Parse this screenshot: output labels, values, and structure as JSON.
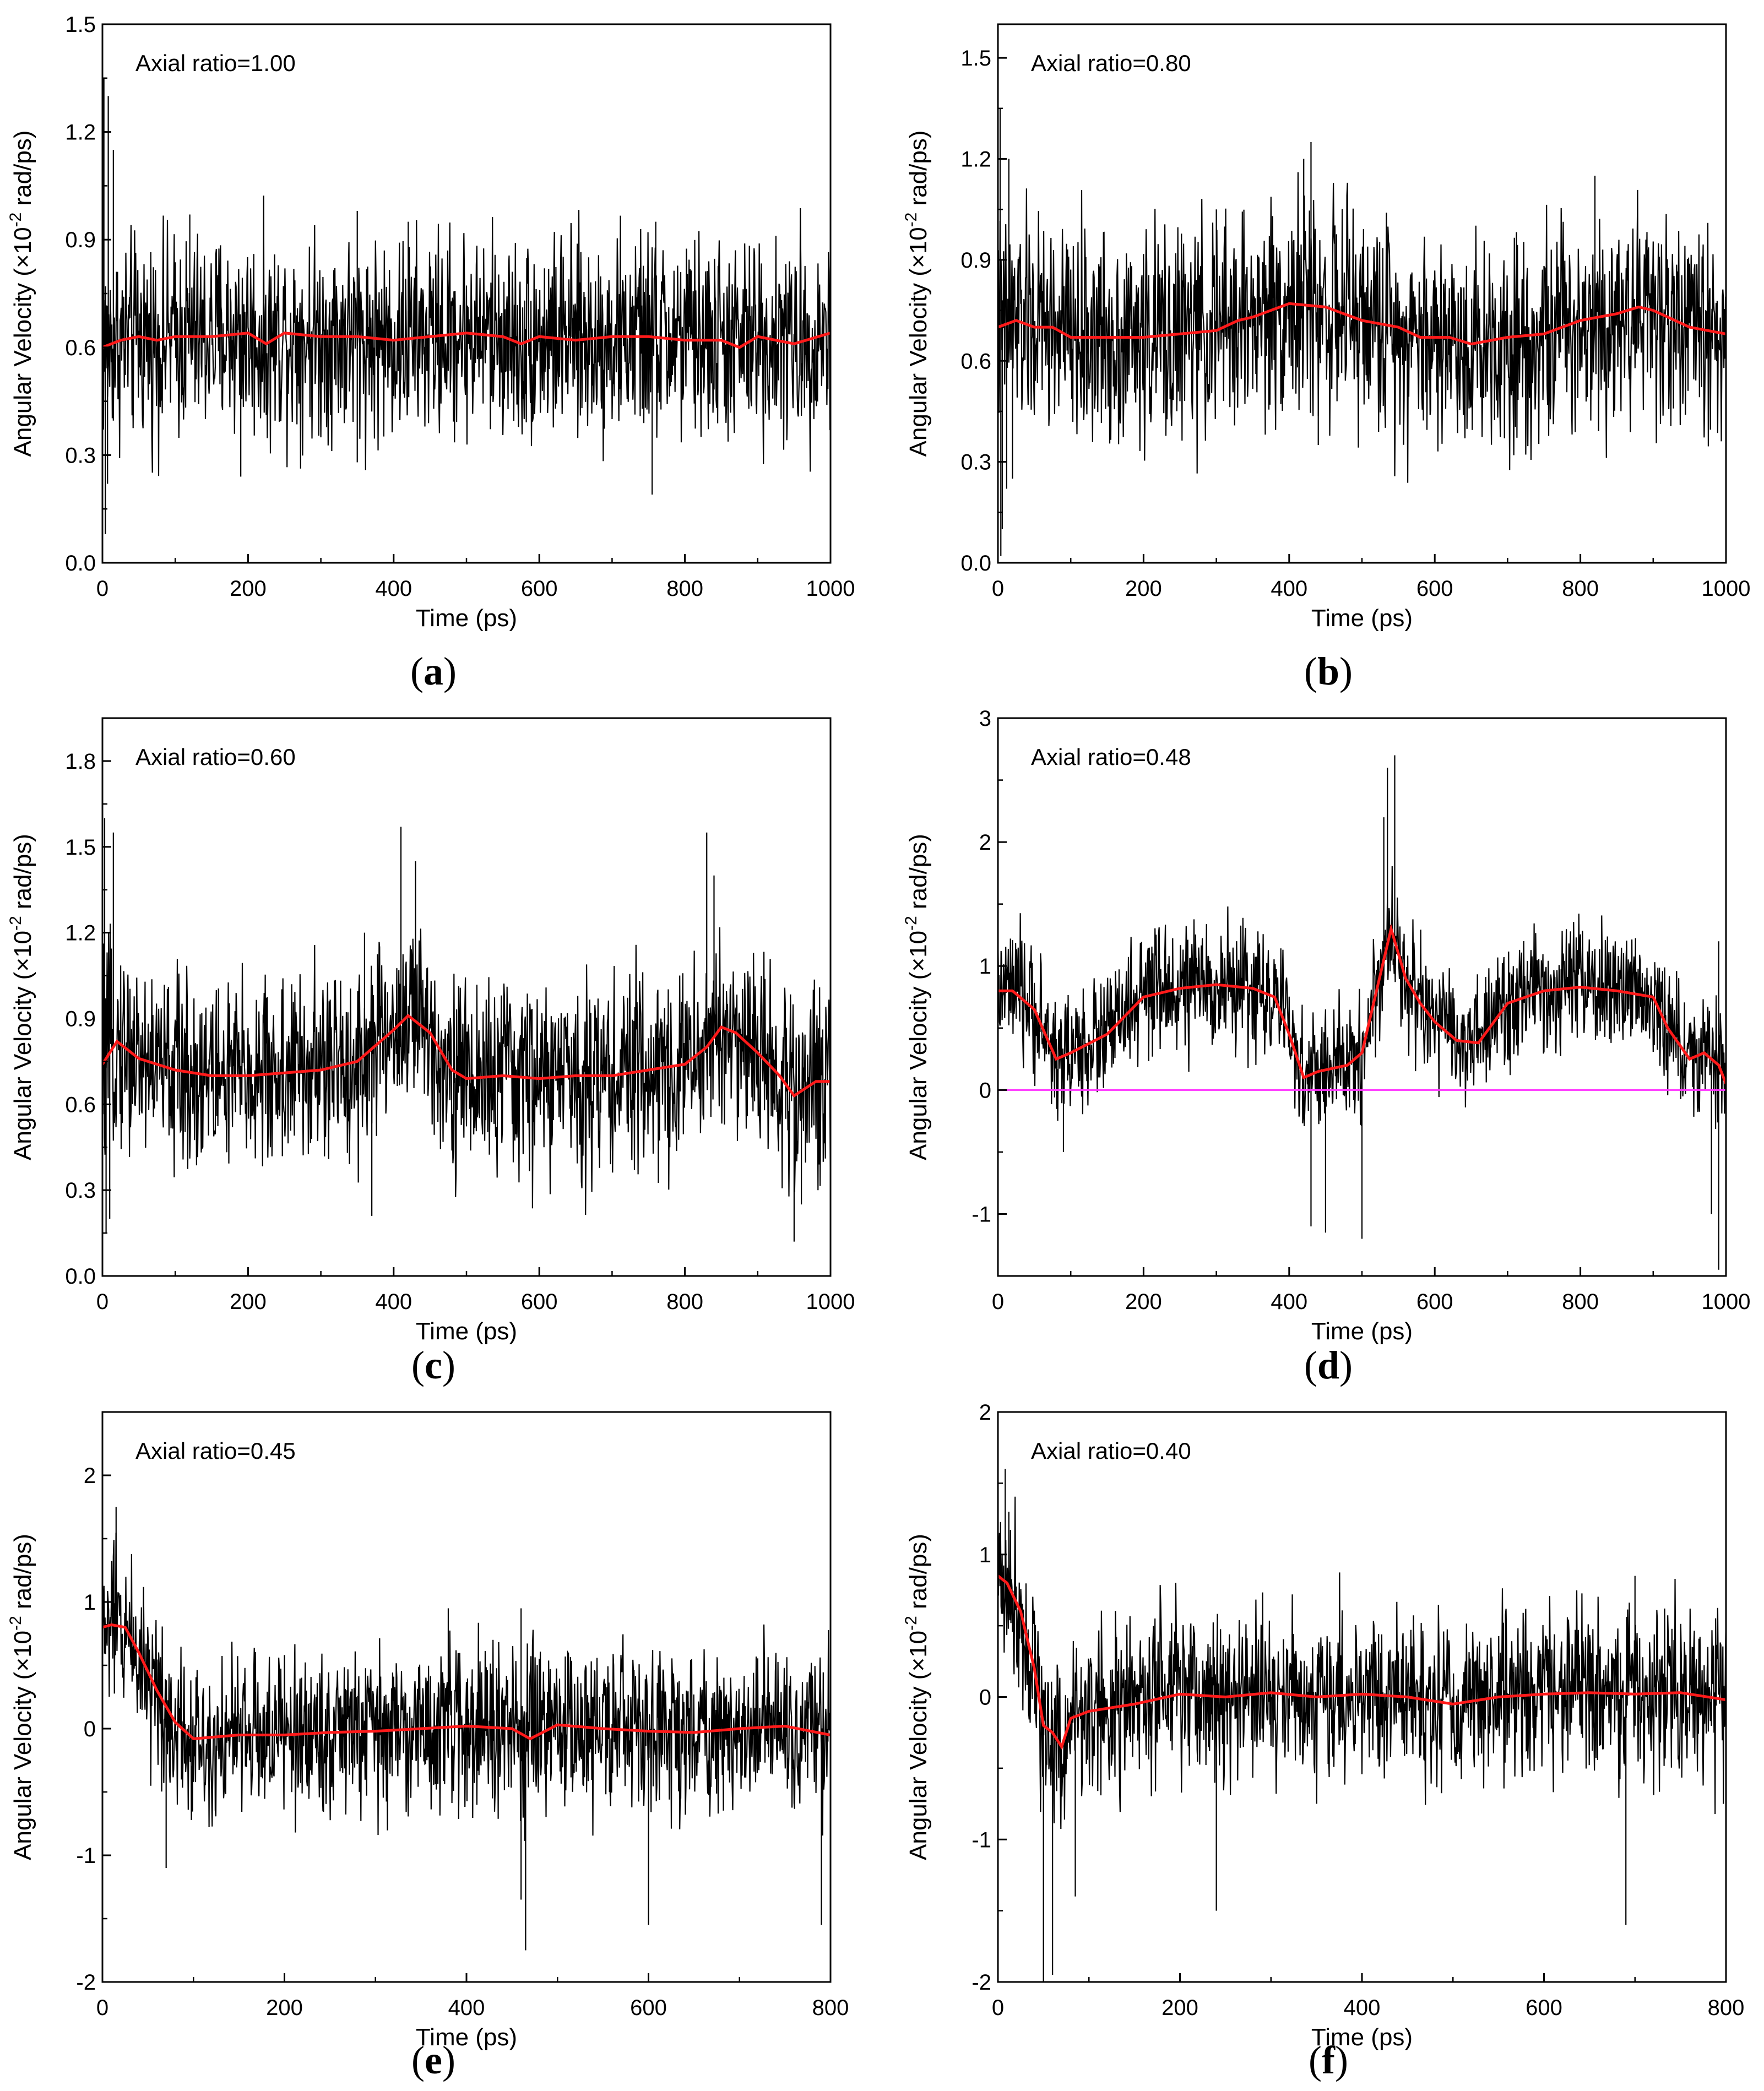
{
  "colors": {
    "raw": "#000000",
    "smoothed": "#ff1a1a",
    "zero_line": "#ff33ff",
    "axis": "#000000"
  },
  "chart_data": [
    {
      "id": "a",
      "type": "line",
      "caption": "a",
      "annotation": "Axial ratio=1.00",
      "xlabel": "Time (ps)",
      "ylabel_prefix": "Angular Velocity (",
      "ylabel_mult": "×10",
      "ylabel_exp": "-2",
      "ylabel_suffix": " rad/ps)",
      "xlim": [
        0,
        1000
      ],
      "ylim": [
        0,
        1.5
      ],
      "xticks": [
        "0",
        "200",
        "400",
        "600",
        "800",
        "1000"
      ],
      "xtick_values": [
        0,
        200,
        400,
        600,
        800,
        1000
      ],
      "yticks": [
        "0.0",
        "0.3",
        "0.6",
        "0.9",
        "1.2",
        "1.5"
      ],
      "ytick_values": [
        0,
        0.3,
        0.6,
        0.9,
        1.2,
        1.5
      ],
      "series": [
        {
          "name": "smoothed angular velocity",
          "x": [
            0,
            25,
            50,
            75,
            100,
            150,
            200,
            225,
            250,
            300,
            350,
            400,
            450,
            500,
            550,
            575,
            600,
            650,
            700,
            750,
            800,
            850,
            875,
            900,
            950,
            1000
          ],
          "values": [
            0.6,
            0.62,
            0.63,
            0.62,
            0.63,
            0.63,
            0.64,
            0.61,
            0.64,
            0.63,
            0.63,
            0.62,
            0.63,
            0.64,
            0.63,
            0.61,
            0.63,
            0.62,
            0.63,
            0.63,
            0.62,
            0.62,
            0.6,
            0.63,
            0.61,
            0.64
          ]
        }
      ],
      "raw": {
        "baseline": 0.63,
        "noise": 0.14,
        "spikes_up": [
          [
            2,
            1.35
          ],
          [
            8,
            1.3
          ],
          [
            15,
            1.15
          ],
          [
            120,
            0.97
          ],
          [
            350,
            0.98
          ],
          [
            420,
            0.95
          ],
          [
            760,
            0.95
          ]
        ],
        "spikes_down": [
          [
            4,
            0.08
          ],
          [
            7,
            0.22
          ],
          [
            190,
            0.24
          ],
          [
            755,
            0.19
          ],
          [
            350,
            0.28
          ]
        ]
      }
    },
    {
      "id": "b",
      "type": "line",
      "caption": "b",
      "annotation": "Axial ratio=0.80",
      "xlabel": "Time (ps)",
      "ylabel_prefix": "Angular Velocity (",
      "ylabel_mult": "×10",
      "ylabel_exp": "-2",
      "ylabel_suffix": " rad/ps)",
      "xlim": [
        0,
        1000
      ],
      "ylim": [
        0,
        1.6
      ],
      "xticks": [
        "0",
        "200",
        "400",
        "600",
        "800",
        "1000"
      ],
      "xtick_values": [
        0,
        200,
        400,
        600,
        800,
        1000
      ],
      "yticks": [
        "0.0",
        "0.3",
        "0.6",
        "0.9",
        "1.2",
        "1.5"
      ],
      "ytick_values": [
        0,
        0.3,
        0.6,
        0.9,
        1.2,
        1.5
      ],
      "series": [
        {
          "name": "smoothed angular velocity",
          "x": [
            0,
            25,
            50,
            75,
            100,
            150,
            200,
            250,
            300,
            330,
            350,
            400,
            450,
            500,
            550,
            580,
            620,
            650,
            700,
            750,
            800,
            850,
            880,
            900,
            950,
            1000
          ],
          "values": [
            0.7,
            0.72,
            0.7,
            0.7,
            0.67,
            0.67,
            0.67,
            0.68,
            0.69,
            0.72,
            0.73,
            0.77,
            0.76,
            0.72,
            0.7,
            0.67,
            0.67,
            0.65,
            0.67,
            0.68,
            0.72,
            0.74,
            0.76,
            0.75,
            0.7,
            0.68
          ]
        }
      ],
      "raw": {
        "baseline": 0.7,
        "noise": 0.16,
        "spikes_up": [
          [
            3,
            1.35
          ],
          [
            15,
            1.2
          ],
          [
            420,
            1.2
          ],
          [
            430,
            1.25
          ],
          [
            820,
            1.15
          ],
          [
            300,
            1.05
          ]
        ],
        "spikes_down": [
          [
            4,
            0.02
          ],
          [
            6,
            0.1
          ],
          [
            12,
            0.22
          ],
          [
            20,
            0.25
          ],
          [
            440,
            0.35
          ]
        ]
      }
    },
    {
      "id": "c",
      "type": "line",
      "caption": "c",
      "annotation": "Axial ratio=0.60",
      "xlabel": "Time (ps)",
      "ylabel_prefix": "Angular Velocity (",
      "ylabel_mult": "×10",
      "ylabel_exp": "-2",
      "ylabel_suffix": " rad/ps)",
      "xlim": [
        0,
        1000
      ],
      "ylim": [
        0,
        1.95
      ],
      "xticks": [
        "0",
        "200",
        "400",
        "600",
        "800",
        "1000"
      ],
      "xtick_values": [
        0,
        200,
        400,
        600,
        800,
        1000
      ],
      "yticks": [
        "0.0",
        "0.3",
        "0.6",
        "0.9",
        "1.2",
        "1.5",
        "1.8"
      ],
      "ytick_values": [
        0,
        0.3,
        0.6,
        0.9,
        1.2,
        1.5,
        1.8
      ],
      "series": [
        {
          "name": "smoothed angular velocity",
          "x": [
            0,
            20,
            50,
            100,
            150,
            200,
            250,
            300,
            350,
            400,
            420,
            450,
            480,
            500,
            550,
            600,
            650,
            700,
            750,
            800,
            830,
            850,
            870,
            900,
            930,
            950,
            980,
            1000
          ],
          "values": [
            0.74,
            0.82,
            0.76,
            0.72,
            0.7,
            0.7,
            0.71,
            0.72,
            0.75,
            0.86,
            0.91,
            0.85,
            0.72,
            0.69,
            0.7,
            0.69,
            0.7,
            0.7,
            0.72,
            0.74,
            0.8,
            0.87,
            0.85,
            0.78,
            0.7,
            0.63,
            0.68,
            0.68
          ]
        }
      ],
      "raw": {
        "baseline": 0.72,
        "noise": 0.17,
        "spikes_up": [
          [
            3,
            1.6
          ],
          [
            15,
            1.55
          ],
          [
            410,
            1.57
          ],
          [
            430,
            1.45
          ],
          [
            830,
            1.55
          ],
          [
            840,
            1.4
          ],
          [
            360,
            1.2
          ]
        ],
        "spikes_down": [
          [
            5,
            0.15
          ],
          [
            10,
            0.2
          ],
          [
            370,
            0.21
          ],
          [
            950,
            0.12
          ],
          [
            960,
            0.25
          ]
        ]
      }
    },
    {
      "id": "d",
      "type": "line",
      "caption": "d",
      "annotation": "Axial ratio=0.48",
      "xlabel": "Time (ps)",
      "ylabel_prefix": "Angular Velocity (",
      "ylabel_mult": "×10",
      "ylabel_exp": "-2",
      "ylabel_suffix": " rad/ps)",
      "xlim": [
        0,
        1000
      ],
      "ylim": [
        -1.5,
        3
      ],
      "xticks": [
        "0",
        "200",
        "400",
        "600",
        "800",
        "1000"
      ],
      "xtick_values": [
        0,
        200,
        400,
        600,
        800,
        1000
      ],
      "yticks": [
        "-1",
        "0",
        "1",
        "2",
        "3"
      ],
      "ytick_values": [
        -1,
        0,
        1,
        2,
        3
      ],
      "reference_line": {
        "y": 0
      },
      "series": [
        {
          "name": "smoothed angular velocity",
          "x": [
            0,
            20,
            50,
            80,
            100,
            150,
            200,
            250,
            300,
            350,
            380,
            400,
            420,
            440,
            480,
            500,
            520,
            540,
            560,
            580,
            600,
            630,
            660,
            700,
            750,
            800,
            850,
            900,
            920,
            950,
            970,
            990,
            1000
          ],
          "values": [
            0.8,
            0.8,
            0.65,
            0.25,
            0.3,
            0.45,
            0.75,
            0.82,
            0.85,
            0.82,
            0.75,
            0.45,
            0.1,
            0.15,
            0.2,
            0.3,
            0.8,
            1.3,
            0.9,
            0.7,
            0.55,
            0.4,
            0.38,
            0.7,
            0.8,
            0.83,
            0.8,
            0.75,
            0.5,
            0.25,
            0.3,
            0.2,
            0.05
          ]
        }
      ],
      "raw": {
        "baseline": 0,
        "noise": 0.25,
        "follow_smoothed": true,
        "spikes_up": [
          [
            535,
            2.6
          ],
          [
            545,
            2.7
          ],
          [
            530,
            2.2
          ],
          [
            990,
            1.2
          ]
        ],
        "spikes_down": [
          [
            430,
            -1.1
          ],
          [
            450,
            -1.15
          ],
          [
            500,
            -1.2
          ],
          [
            990,
            -1.45
          ],
          [
            980,
            -1.0
          ],
          [
            90,
            -0.5
          ]
        ]
      }
    },
    {
      "id": "e",
      "type": "line",
      "caption": "e",
      "annotation": "Axial ratio=0.45",
      "xlabel": "Time (ps)",
      "ylabel_prefix": "Angular Velocity (",
      "ylabel_mult": "×10",
      "ylabel_exp": "-2",
      "ylabel_suffix": " rad/ps)",
      "xlim": [
        0,
        800
      ],
      "ylim": [
        -2,
        2.5
      ],
      "xticks": [
        "0",
        "200",
        "400",
        "600",
        "800"
      ],
      "xtick_values": [
        0,
        200,
        400,
        600,
        800
      ],
      "yticks": [
        "-2",
        "-1",
        "0",
        "1",
        "2"
      ],
      "ytick_values": [
        -2,
        -1,
        0,
        1,
        2
      ],
      "series": [
        {
          "name": "smoothed angular velocity",
          "x": [
            0,
            10,
            25,
            40,
            60,
            80,
            100,
            150,
            200,
            250,
            300,
            350,
            400,
            450,
            470,
            500,
            550,
            600,
            650,
            700,
            750,
            800
          ],
          "values": [
            0.8,
            0.82,
            0.8,
            0.6,
            0.3,
            0.05,
            -0.08,
            -0.05,
            -0.05,
            -0.03,
            -0.02,
            0.0,
            0.02,
            0.0,
            -0.08,
            0.03,
            0.0,
            -0.02,
            -0.03,
            0.0,
            0.02,
            -0.05
          ]
        }
      ],
      "raw": {
        "baseline": 0,
        "noise": 0.32,
        "follow_smoothed": true,
        "spikes_up": [
          [
            15,
            1.75
          ],
          [
            460,
            0.95
          ],
          [
            380,
            0.95
          ]
        ],
        "spikes_down": [
          [
            465,
            -1.75
          ],
          [
            460,
            -1.35
          ],
          [
            600,
            -1.55
          ],
          [
            790,
            -1.55
          ],
          [
            70,
            -1.1
          ]
        ]
      }
    },
    {
      "id": "f",
      "type": "line",
      "caption": "f",
      "annotation": "Axial ratio=0.40",
      "xlabel": "Time (ps)",
      "ylabel_prefix": "Angular Velocity (",
      "ylabel_mult": "×10",
      "ylabel_exp": "-2",
      "ylabel_suffix": " rad/ps)",
      "xlim": [
        0,
        800
      ],
      "ylim": [
        -2,
        2
      ],
      "xticks": [
        "0",
        "200",
        "400",
        "600",
        "800"
      ],
      "xtick_values": [
        0,
        200,
        400,
        600,
        800
      ],
      "yticks": [
        "-2",
        "-1",
        "0",
        "1",
        "2"
      ],
      "ytick_values": [
        -2,
        -1,
        0,
        1,
        2
      ],
      "series": [
        {
          "name": "smoothed angular velocity",
          "x": [
            0,
            10,
            25,
            40,
            50,
            60,
            70,
            80,
            100,
            150,
            200,
            250,
            300,
            350,
            400,
            450,
            500,
            550,
            600,
            650,
            700,
            750,
            800
          ],
          "values": [
            0.85,
            0.8,
            0.6,
            0.2,
            -0.2,
            -0.25,
            -0.35,
            -0.15,
            -0.1,
            -0.05,
            0.02,
            0.0,
            0.03,
            0.0,
            0.02,
            0.0,
            -0.05,
            0.0,
            0.02,
            0.03,
            0.02,
            0.03,
            -0.02
          ]
        }
      ],
      "raw": {
        "baseline": 0,
        "noise": 0.3,
        "follow_smoothed": true,
        "spikes_up": [
          [
            8,
            1.6
          ],
          [
            12,
            1.3
          ],
          [
            700,
            0.85
          ]
        ],
        "spikes_down": [
          [
            50,
            -2.0
          ],
          [
            60,
            -1.95
          ],
          [
            240,
            -1.5
          ],
          [
            690,
            -1.6
          ],
          [
            85,
            -1.4
          ]
        ]
      }
    }
  ]
}
